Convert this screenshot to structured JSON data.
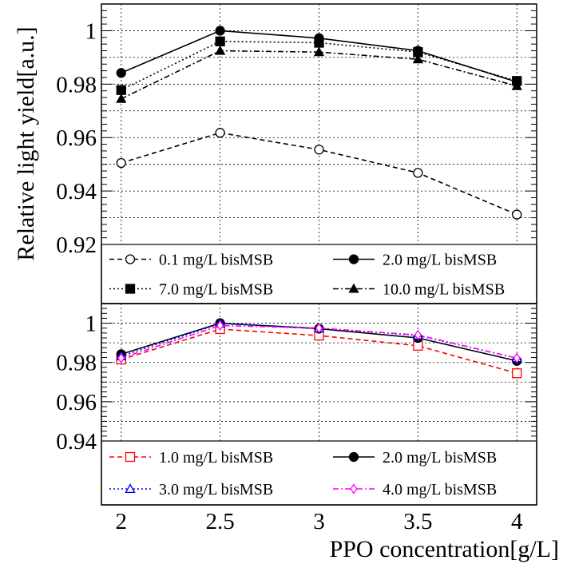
{
  "chart_data": [
    {
      "type": "line",
      "panel": "top",
      "ylabel": "Relative light yield[a.u.]",
      "x": [
        2,
        2.5,
        3,
        3.5,
        4
      ],
      "xlim": [
        1.9,
        4.1
      ],
      "ylim": [
        0.92,
        1.01
      ],
      "yticks": [
        0.92,
        0.94,
        0.96,
        0.98,
        1
      ],
      "ytick_labels": [
        "0.92",
        "0.94",
        "0.96",
        "0.98",
        "1"
      ],
      "grid": true,
      "legend_position": "bottom of panel",
      "series": [
        {
          "name": "0.1 mg/L bisMSB",
          "marker": "open-circle",
          "dash": "dashed",
          "color": "#000000",
          "values": [
            0.9505,
            0.9618,
            0.9555,
            0.9468,
            0.9312
          ]
        },
        {
          "name": "2.0 mg/L bisMSB",
          "marker": "filled-circle",
          "dash": "solid",
          "color": "#000000",
          "values": [
            0.9842,
            1.0,
            0.9972,
            0.9925,
            0.9808
          ]
        },
        {
          "name": "7.0 mg/L bisMSB",
          "marker": "filled-square",
          "dash": "dotted",
          "color": "#000000",
          "values": [
            0.9778,
            0.996,
            0.9955,
            0.992,
            0.9812
          ]
        },
        {
          "name": "10.0 mg/L bisMSB",
          "marker": "filled-triangle",
          "dash": "dashdot",
          "color": "#000000",
          "values": [
            0.9745,
            0.9925,
            0.992,
            0.9893,
            0.9793
          ]
        }
      ]
    },
    {
      "type": "line",
      "panel": "bottom",
      "xlabel": "PPO concentration[g/L]",
      "x": [
        2,
        2.5,
        3,
        3.5,
        4
      ],
      "xlim": [
        1.9,
        4.1
      ],
      "xticks": [
        2,
        2.5,
        3,
        3.5,
        4
      ],
      "xtick_labels": [
        "2",
        "2.5",
        "3",
        "3.5",
        "4"
      ],
      "ylim": [
        0.94,
        1.01
      ],
      "yticks": [
        0.94,
        0.96,
        0.98,
        1
      ],
      "ytick_labels": [
        "0.94",
        "0.96",
        "0.98",
        "1"
      ],
      "grid": true,
      "legend_position": "bottom of panel",
      "series": [
        {
          "name": "1.0 mg/L bisMSB",
          "marker": "open-square",
          "dash": "dashed",
          "color": "#ff0000",
          "values": [
            0.9815,
            0.997,
            0.9937,
            0.9885,
            0.9745
          ]
        },
        {
          "name": "2.0 mg/L bisMSB",
          "marker": "filled-circle",
          "dash": "solid",
          "color": "#000000",
          "values": [
            0.9842,
            1.0,
            0.9972,
            0.9925,
            0.9808
          ]
        },
        {
          "name": "3.0 mg/L bisMSB",
          "marker": "open-triangle",
          "dash": "dotted",
          "color": "#0000ff",
          "values": [
            0.9832,
            0.9998,
            0.9975,
            0.9938,
            0.9822
          ]
        },
        {
          "name": "4.0 mg/L bisMSB",
          "marker": "open-diamond",
          "dash": "dashdot",
          "color": "#ff00ff",
          "values": [
            0.9822,
            0.9988,
            0.9975,
            0.994,
            0.9822
          ]
        }
      ]
    }
  ]
}
